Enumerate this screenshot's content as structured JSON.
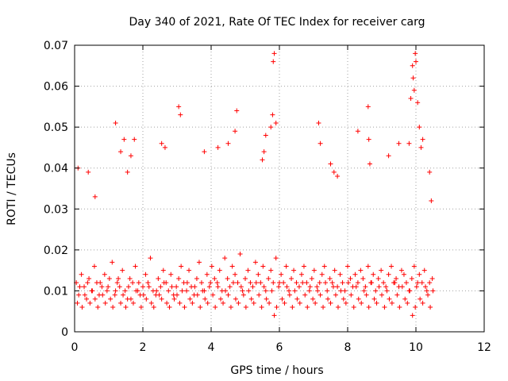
{
  "chart_data": {
    "type": "scatter",
    "title": "Day 340 of 2021, Rate Of TEC Index for receiver carg",
    "xlabel": "GPS time / hours",
    "ylabel": "ROTI / TECUs",
    "xlim": [
      0,
      12
    ],
    "ylim": [
      0,
      0.07
    ],
    "x_ticks": [
      0,
      2,
      4,
      6,
      8,
      10,
      12
    ],
    "x_tick_labels": [
      "0",
      "2",
      "4",
      "6",
      "8",
      "10",
      "12"
    ],
    "y_ticks": [
      0,
      0.01,
      0.02,
      0.03,
      0.04,
      0.05,
      0.06,
      0.07
    ],
    "y_tick_labels": [
      "0",
      "0.01",
      "0.02",
      "0.03",
      "0.04",
      "0.05",
      "0.06",
      "0.07"
    ],
    "grid": true,
    "marker": "+",
    "marker_color": "#ff0000",
    "series": [
      {
        "name": "ROTI",
        "x": [
          0.05,
          0.12,
          0.2,
          0.28,
          0.35,
          0.42,
          0.5,
          0.58,
          0.65,
          0.72,
          0.8,
          0.88,
          0.95,
          1.02,
          1.1,
          1.18,
          1.25,
          1.32,
          1.4,
          1.48,
          1.55,
          1.62,
          1.7,
          1.78,
          1.85,
          1.92,
          2.0,
          2.08,
          2.15,
          2.22,
          2.3,
          2.38,
          2.45,
          2.52,
          2.6,
          2.68,
          2.75,
          2.82,
          2.9,
          2.98,
          3.05,
          3.12,
          3.2,
          3.28,
          3.35,
          3.42,
          3.5,
          3.58,
          3.65,
          3.72,
          3.8,
          3.88,
          3.95,
          4.02,
          4.1,
          4.18,
          4.25,
          4.32,
          4.4,
          4.48,
          4.55,
          4.62,
          4.7,
          4.78,
          4.85,
          4.92,
          5.0,
          5.08,
          5.15,
          5.22,
          5.3,
          5.38,
          5.45,
          5.52,
          5.6,
          5.68,
          5.75,
          5.82,
          5.9,
          5.98,
          6.05,
          6.12,
          6.2,
          6.28,
          6.35,
          6.42,
          6.5,
          6.58,
          6.65,
          6.72,
          6.8,
          6.88,
          6.95,
          7.02,
          7.1,
          7.18,
          7.25,
          7.32,
          7.4,
          7.48,
          7.55,
          7.62,
          7.7,
          7.78,
          7.85,
          7.92,
          8.0,
          8.08,
          8.15,
          8.22,
          8.3,
          8.38,
          8.45,
          8.52,
          8.6,
          8.68,
          8.75,
          8.82,
          8.9,
          8.98,
          9.05,
          9.12,
          9.2,
          9.28,
          9.35,
          9.42,
          9.5,
          9.58,
          9.65,
          9.72,
          9.8,
          9.88,
          9.95,
          10.02,
          10.1,
          10.18,
          10.25,
          10.32,
          10.4,
          10.48,
          0.08,
          0.15,
          0.22,
          0.3,
          0.38,
          0.45,
          0.52,
          0.6,
          0.68,
          0.75,
          0.82,
          0.9,
          0.98,
          1.05,
          1.12,
          1.2,
          1.28,
          1.35,
          1.42,
          1.5,
          1.58,
          1.65,
          1.72,
          1.8,
          1.88,
          1.95,
          2.02,
          2.1,
          2.18,
          2.25,
          2.32,
          2.4,
          2.48,
          2.55,
          2.62,
          2.7,
          2.78,
          2.85,
          2.92,
          3.0,
          3.08,
          3.15,
          3.22,
          3.3,
          3.38,
          3.45,
          3.52,
          3.6,
          3.68,
          3.75,
          3.82,
          3.9,
          3.98,
          4.05,
          4.12,
          4.2,
          4.28,
          4.35,
          4.42,
          4.5,
          4.58,
          4.65,
          4.72,
          4.8,
          4.88,
          4.95,
          5.02,
          5.1,
          5.18,
          5.25,
          5.32,
          5.4,
          5.48,
          5.55,
          5.62,
          5.7,
          5.78,
          5.85,
          5.92,
          6.0,
          6.08,
          6.15,
          6.22,
          6.3,
          6.38,
          6.45,
          6.52,
          6.6,
          6.68,
          6.75,
          6.82,
          6.9,
          6.98,
          7.05,
          7.12,
          7.2,
          7.28,
          7.35,
          7.42,
          7.5,
          7.58,
          7.65,
          7.72,
          7.8,
          7.88,
          7.95,
          8.02,
          8.1,
          8.18,
          8.25,
          8.32,
          8.4,
          8.48,
          8.55,
          8.62,
          8.7,
          8.78,
          8.85,
          8.92,
          9.0,
          9.08,
          9.15,
          9.22,
          9.3,
          9.38,
          9.45,
          9.52,
          9.6,
          9.68,
          9.75,
          9.82,
          9.9,
          9.98,
          10.05,
          10.12,
          10.2,
          10.28,
          10.35,
          10.42,
          10.5,
          0.1,
          0.4,
          0.6,
          1.2,
          1.35,
          1.45,
          1.55,
          1.65,
          1.75,
          2.55,
          2.65,
          3.05,
          3.1,
          3.8,
          4.2,
          4.5,
          4.7,
          4.75,
          5.5,
          5.55,
          5.6,
          5.75,
          5.8,
          5.82,
          5.85,
          5.9,
          7.15,
          7.2,
          7.5,
          7.6,
          7.7,
          8.3,
          8.6,
          8.62,
          8.65,
          9.2,
          9.5,
          9.8,
          9.85,
          9.9,
          9.92,
          9.95,
          9.98,
          10.0,
          10.05,
          10.1,
          10.15,
          10.2,
          10.4,
          10.45
        ],
        "y": [
          0.012,
          0.009,
          0.014,
          0.011,
          0.008,
          0.013,
          0.01,
          0.016,
          0.012,
          0.009,
          0.011,
          0.014,
          0.01,
          0.013,
          0.017,
          0.009,
          0.012,
          0.011,
          0.015,
          0.01,
          0.008,
          0.013,
          0.012,
          0.016,
          0.01,
          0.009,
          0.011,
          0.014,
          0.012,
          0.018,
          0.01,
          0.009,
          0.013,
          0.011,
          0.015,
          0.012,
          0.01,
          0.014,
          0.009,
          0.011,
          0.013,
          0.016,
          0.012,
          0.01,
          0.015,
          0.011,
          0.009,
          0.013,
          0.017,
          0.012,
          0.01,
          0.014,
          0.011,
          0.016,
          0.013,
          0.012,
          0.015,
          0.01,
          0.018,
          0.013,
          0.011,
          0.016,
          0.014,
          0.012,
          0.019,
          0.01,
          0.013,
          0.015,
          0.012,
          0.011,
          0.017,
          0.014,
          0.012,
          0.016,
          0.01,
          0.013,
          0.015,
          0.012,
          0.018,
          0.011,
          0.014,
          0.012,
          0.016,
          0.01,
          0.013,
          0.015,
          0.012,
          0.011,
          0.014,
          0.016,
          0.012,
          0.01,
          0.013,
          0.015,
          0.011,
          0.012,
          0.014,
          0.016,
          0.01,
          0.013,
          0.012,
          0.015,
          0.011,
          0.014,
          0.012,
          0.01,
          0.016,
          0.013,
          0.011,
          0.014,
          0.012,
          0.015,
          0.013,
          0.011,
          0.016,
          0.012,
          0.014,
          0.01,
          0.013,
          0.015,
          0.012,
          0.011,
          0.014,
          0.016,
          0.012,
          0.013,
          0.011,
          0.015,
          0.014,
          0.012,
          0.01,
          0.013,
          0.016,
          0.011,
          0.014,
          0.012,
          0.015,
          0.01,
          0.012,
          0.013,
          0.007,
          0.011,
          0.006,
          0.009,
          0.012,
          0.007,
          0.01,
          0.008,
          0.006,
          0.012,
          0.009,
          0.007,
          0.011,
          0.008,
          0.006,
          0.01,
          0.013,
          0.007,
          0.009,
          0.006,
          0.011,
          0.008,
          0.007,
          0.01,
          0.012,
          0.006,
          0.009,
          0.008,
          0.011,
          0.007,
          0.006,
          0.01,
          0.009,
          0.008,
          0.012,
          0.007,
          0.006,
          0.011,
          0.008,
          0.009,
          0.007,
          0.01,
          0.006,
          0.012,
          0.008,
          0.007,
          0.011,
          0.009,
          0.006,
          0.01,
          0.008,
          0.007,
          0.012,
          0.009,
          0.006,
          0.011,
          0.008,
          0.007,
          0.01,
          0.009,
          0.006,
          0.012,
          0.008,
          0.007,
          0.011,
          0.009,
          0.006,
          0.01,
          0.008,
          0.007,
          0.012,
          0.009,
          0.006,
          0.011,
          0.008,
          0.007,
          0.01,
          0.004,
          0.006,
          0.012,
          0.008,
          0.007,
          0.011,
          0.009,
          0.006,
          0.01,
          0.008,
          0.007,
          0.012,
          0.009,
          0.006,
          0.011,
          0.008,
          0.007,
          0.01,
          0.009,
          0.006,
          0.012,
          0.008,
          0.007,
          0.011,
          0.009,
          0.006,
          0.01,
          0.008,
          0.007,
          0.012,
          0.009,
          0.006,
          0.011,
          0.008,
          0.007,
          0.01,
          0.009,
          0.006,
          0.012,
          0.008,
          0.007,
          0.011,
          0.009,
          0.006,
          0.01,
          0.008,
          0.007,
          0.012,
          0.009,
          0.006,
          0.011,
          0.008,
          0.007,
          0.01,
          0.004,
          0.006,
          0.012,
          0.008,
          0.007,
          0.011,
          0.009,
          0.006,
          0.01,
          0.04,
          0.039,
          0.033,
          0.051,
          0.044,
          0.047,
          0.039,
          0.043,
          0.047,
          0.046,
          0.045,
          0.055,
          0.053,
          0.044,
          0.045,
          0.046,
          0.049,
          0.054,
          0.042,
          0.044,
          0.048,
          0.05,
          0.053,
          0.066,
          0.068,
          0.051,
          0.051,
          0.046,
          0.041,
          0.039,
          0.038,
          0.049,
          0.055,
          0.047,
          0.041,
          0.043,
          0.046,
          0.046,
          0.057,
          0.065,
          0.062,
          0.059,
          0.068,
          0.066,
          0.056,
          0.05,
          0.045,
          0.047,
          0.039,
          0.032
        ]
      }
    ]
  }
}
